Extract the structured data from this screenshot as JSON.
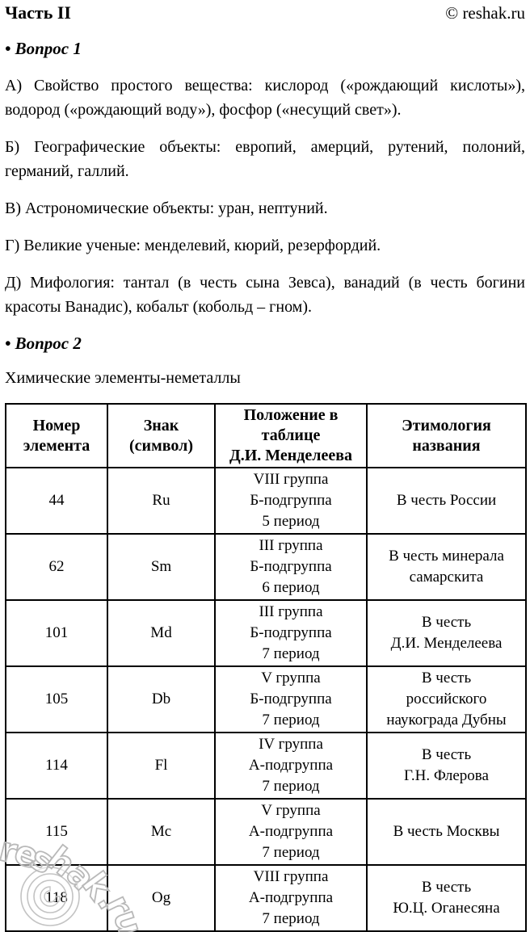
{
  "header": {
    "title": "Часть II",
    "copyright": "© reshak.ru"
  },
  "question1": {
    "label": "• Вопрос 1",
    "paragraphs": [
      "А) Свойство простого вещества: кислород («рождающий кислоты»), водород («рождающий воду»), фосфор («несущий свет»).",
      "Б) Географические объекты: европий, амерций, рутений, полоний, германий, галлий.",
      "В) Астрономические объекты: уран, нептуний.",
      "Г) Великие ученые: менделевий, кюрий, резерфордий.",
      "Д) Мифология: тантал (в честь сына Зевса), ванадий (в честь богини красоты Ванадис), кобальт (кобольд – гном)."
    ]
  },
  "question2": {
    "label": "• Вопрос 2",
    "intro": "Химические элементы-неметаллы",
    "table": {
      "headers": [
        "Номер\nэлемента",
        "Знак\n(символ)",
        "Положение в\nтаблице\nД.И. Менделеева",
        "Этимология\nназвания"
      ],
      "rows": [
        {
          "number": "44",
          "symbol": "Ru",
          "position": "VIII группа\nБ-подгруппа\n5 период",
          "etymology": "В честь России"
        },
        {
          "number": "62",
          "symbol": "Sm",
          "position": "III группа\nБ-подгруппа\n6 период",
          "etymology": "В честь минерала\nсамарскита"
        },
        {
          "number": "101",
          "symbol": "Md",
          "position": "III группа\nБ-подгруппа\n7 период",
          "etymology": "В честь\nД.И. Менделеева"
        },
        {
          "number": "105",
          "symbol": "Db",
          "position": "V группа\nБ-подгруппа\n7 период",
          "etymology": "В честь\nроссийского\nнаукограда Дубны"
        },
        {
          "number": "114",
          "symbol": "Fl",
          "position": "IV группа\nА-подгруппа\n7 период",
          "etymology": "В честь\nГ.Н. Флерова"
        },
        {
          "number": "115",
          "symbol": "Mc",
          "position": "V группа\nА-подгруппа\n7 период",
          "etymology": "В честь Москвы"
        },
        {
          "number": "118",
          "symbol": "Og",
          "position": "VIII группа\nА-подгруппа\n7 период",
          "etymology": "В честь\nЮ.Ц. Оганесяна"
        }
      ]
    }
  },
  "watermark": {
    "text": "reshak.ru"
  }
}
